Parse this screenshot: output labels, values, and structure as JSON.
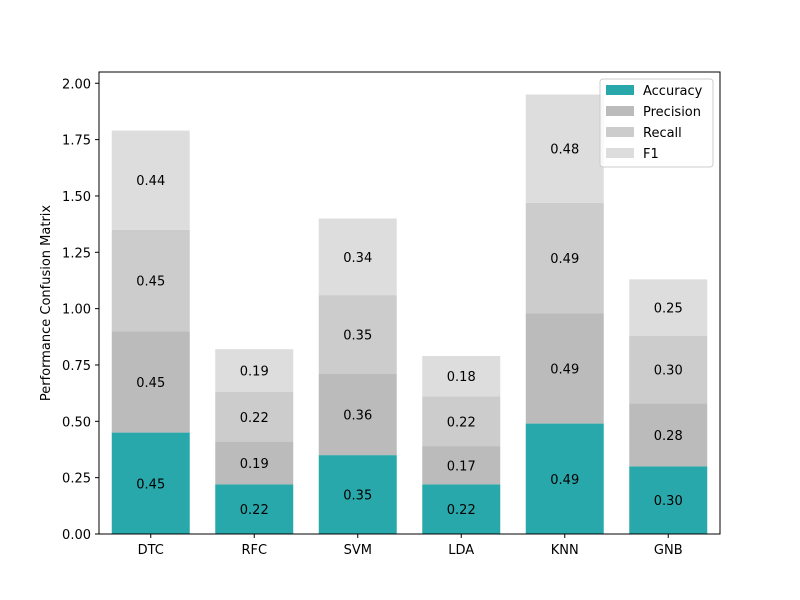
{
  "chart_data": {
    "type": "bar",
    "stacked": true,
    "categories": [
      "DTC",
      "RFC",
      "SVM",
      "LDA",
      "KNN",
      "GNB"
    ],
    "series": [
      {
        "name": "Accuracy",
        "values": [
          0.45,
          0.22,
          0.35,
          0.22,
          0.49,
          0.3
        ],
        "color": "#29a8ab"
      },
      {
        "name": "Precision",
        "values": [
          0.45,
          0.19,
          0.36,
          0.17,
          0.49,
          0.28
        ],
        "color": "#bbbbbb"
      },
      {
        "name": "Recall",
        "values": [
          0.45,
          0.22,
          0.35,
          0.22,
          0.49,
          0.3
        ],
        "color": "#cccccc"
      },
      {
        "name": "F1",
        "values": [
          0.44,
          0.19,
          0.34,
          0.18,
          0.48,
          0.25
        ],
        "color": "#dddddd"
      }
    ],
    "ylabel": "Performance Confusion Matrix",
    "ylim": [
      0,
      2.05
    ],
    "yticks": [
      "0.00",
      "0.25",
      "0.50",
      "0.75",
      "1.00",
      "1.25",
      "1.50",
      "1.75",
      "2.00"
    ],
    "legend_position": "top-right",
    "grid": false
  }
}
